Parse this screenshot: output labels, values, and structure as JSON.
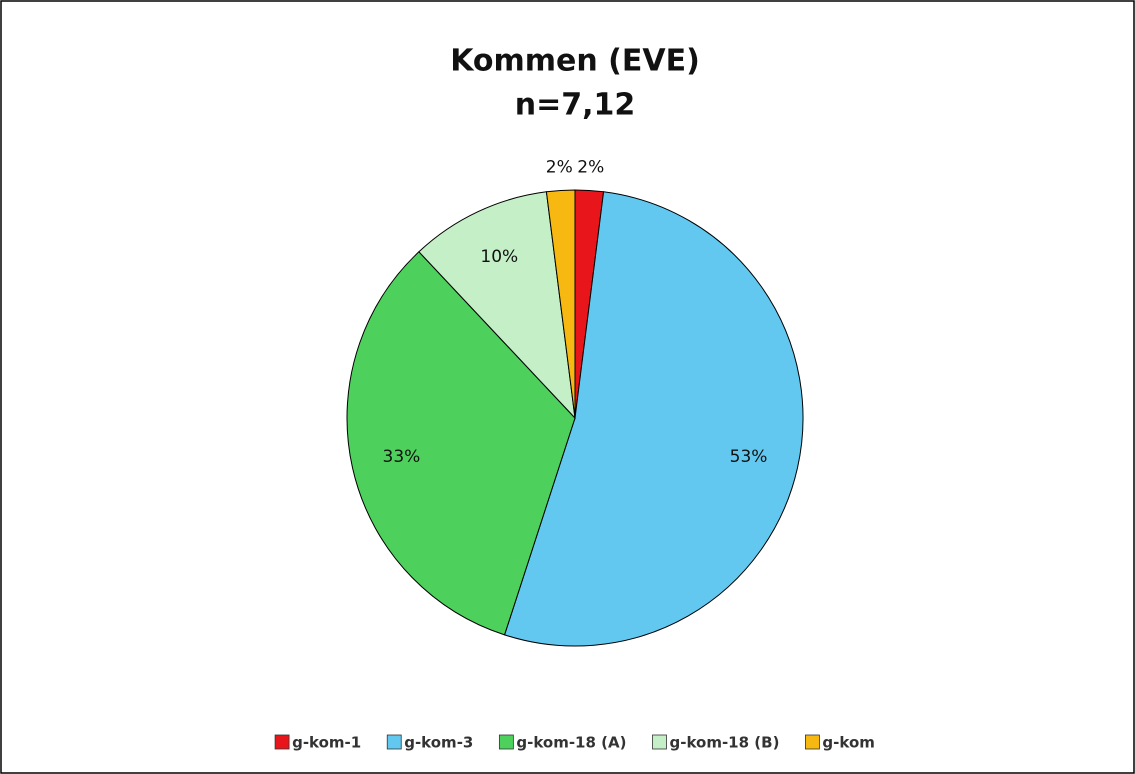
{
  "chart_data": {
    "type": "pie",
    "title": "Kommen (EVE)",
    "subtitle": "n=7,12",
    "categories": [
      "g-kom-1",
      "g-kom-3",
      "g-kom-18 (A)",
      "g-kom-18 (B)",
      "g-kom"
    ],
    "values": [
      2,
      53,
      33,
      10,
      2
    ],
    "value_labels": [
      "2%",
      "53%",
      "33%",
      "10%",
      "2%"
    ],
    "colors": [
      "#e8161b",
      "#62c8f0",
      "#4dd15c",
      "#c5efc7",
      "#f7b811"
    ],
    "legend": "bottom"
  }
}
